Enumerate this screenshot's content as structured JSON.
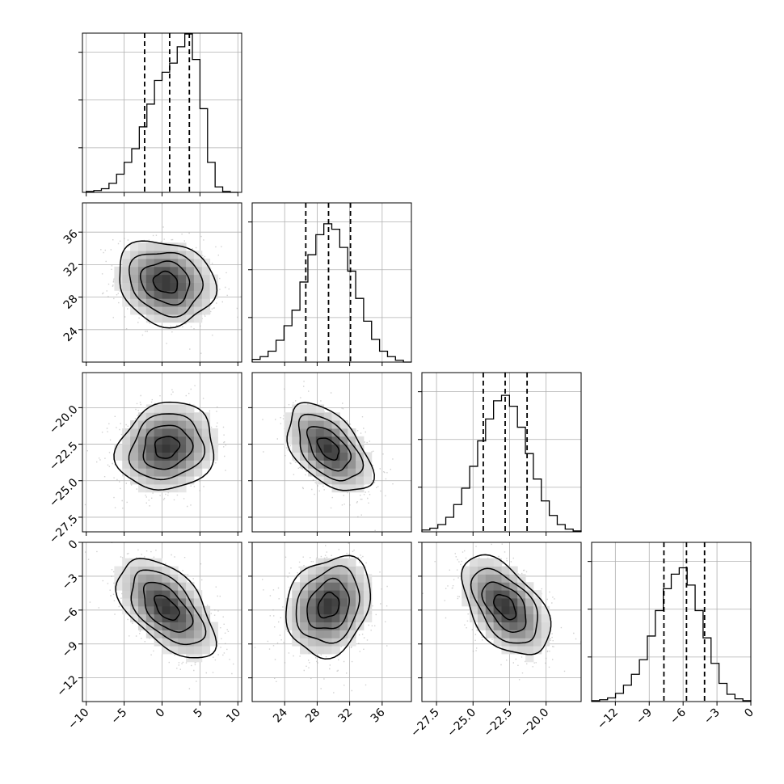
{
  "chart_data": {
    "type": "corner",
    "grid": true,
    "parameters": [
      {
        "range": [
          -10.5,
          10.5
        ],
        "ticks": [
          -10,
          -5,
          0,
          5,
          10
        ],
        "tick_labels": [
          "−10",
          "−5",
          "0",
          "5",
          "10"
        ],
        "quantiles": [
          -2.3,
          1.0,
          3.6
        ],
        "histogram": {
          "edges": [
            -10,
            -9,
            -8,
            -7,
            -6,
            -5,
            -4,
            -3,
            -2,
            -1,
            0,
            1,
            2,
            3,
            4,
            5,
            6,
            7,
            8,
            9,
            10
          ],
          "counts": [
            1,
            2,
            4,
            10,
            20,
            33,
            48,
            72,
            97,
            123,
            132,
            142,
            160,
            174,
            146,
            92,
            33,
            6,
            1,
            0
          ]
        }
      },
      {
        "range": [
          20.0,
          39.6
        ],
        "ticks": [
          24,
          28,
          32,
          36
        ],
        "tick_labels": [
          "24",
          "28",
          "32",
          "36"
        ],
        "quantiles": [
          26.6,
          29.4,
          32.1
        ],
        "histogram": {
          "edges": [
            20.0,
            20.98,
            21.96,
            22.94,
            23.92,
            24.9,
            25.88,
            26.86,
            27.84,
            28.82,
            29.8,
            30.78,
            31.76,
            32.74,
            33.72,
            34.7,
            35.68,
            36.66,
            37.64,
            38.62,
            39.6
          ],
          "counts": [
            3,
            6,
            12,
            24,
            40,
            57,
            88,
            118,
            140,
            152,
            146,
            126,
            100,
            70,
            45,
            25,
            12,
            6,
            2,
            0
          ]
        }
      },
      {
        "range": [
          -28.5,
          -17.6
        ],
        "ticks": [
          -27.5,
          -25.0,
          -22.5,
          -20.0
        ],
        "tick_labels": [
          "−27.5",
          "−25.0",
          "−22.5",
          "−20.0"
        ],
        "quantiles": [
          -24.3,
          -22.8,
          -21.3
        ],
        "histogram": {
          "edges": [
            -28.5,
            -27.955,
            -27.41,
            -26.865,
            -26.32,
            -25.775,
            -25.23,
            -24.685,
            -24.14,
            -23.595,
            -23.05,
            -22.505,
            -21.96,
            -21.415,
            -20.87,
            -20.325,
            -19.78,
            -19.235,
            -18.69,
            -18.145,
            -17.6
          ],
          "counts": [
            2,
            4,
            8,
            16,
            30,
            48,
            72,
            100,
            124,
            144,
            150,
            138,
            115,
            86,
            58,
            34,
            18,
            8,
            3,
            1
          ]
        }
      },
      {
        "range": [
          -14.1,
          0.0
        ],
        "ticks": [
          -12,
          -9,
          -6,
          -3,
          0
        ],
        "tick_labels": [
          "−12",
          "−9",
          "−6",
          "−3",
          "0"
        ],
        "quantiles": [
          -7.7,
          -5.7,
          -4.1
        ],
        "histogram": {
          "edges": [
            -14.1,
            -13.395,
            -12.69,
            -11.985,
            -11.28,
            -10.575,
            -9.87,
            -9.165,
            -8.46,
            -7.755,
            -7.05,
            -6.345,
            -5.64,
            -4.935,
            -4.23,
            -3.525,
            -2.82,
            -2.115,
            -1.41,
            -0.705,
            0.0
          ],
          "counts": [
            1,
            2,
            4,
            9,
            18,
            30,
            46,
            72,
            100,
            124,
            140,
            147,
            128,
            100,
            70,
            42,
            20,
            8,
            3,
            1
          ]
        }
      }
    ],
    "pairs": [
      {
        "x": 0,
        "y": 1,
        "center": [
          0.5,
          29.8
        ],
        "sd": [
          3.2,
          2.6
        ],
        "corr": -0.15
      },
      {
        "x": 0,
        "y": 2,
        "center": [
          0.6,
          -22.7
        ],
        "sd": [
          3.2,
          1.5
        ],
        "corr": 0.12
      },
      {
        "x": 1,
        "y": 2,
        "center": [
          29.4,
          -22.8
        ],
        "sd": [
          2.6,
          1.5
        ],
        "corr": -0.5
      },
      {
        "x": 0,
        "y": 3,
        "center": [
          0.6,
          -5.8
        ],
        "sd": [
          3.2,
          2.2
        ],
        "corr": -0.55
      },
      {
        "x": 1,
        "y": 3,
        "center": [
          29.4,
          -5.6
        ],
        "sd": [
          2.6,
          2.2
        ],
        "corr": 0.2
      },
      {
        "x": 2,
        "y": 3,
        "center": [
          -22.8,
          -5.7
        ],
        "sd": [
          1.5,
          2.2
        ],
        "corr": -0.5
      }
    ],
    "hist_ylim": [
      0,
      175
    ],
    "contour_levels_sigma": [
      0.5,
      1.0,
      1.5,
      2.0
    ]
  }
}
